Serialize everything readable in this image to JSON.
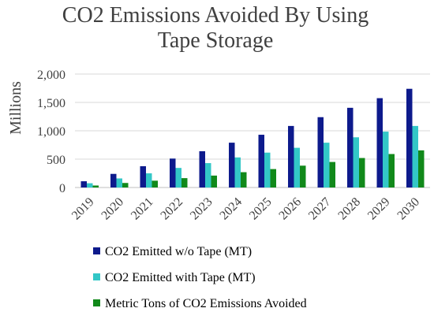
{
  "chart_data": {
    "type": "bar",
    "title_lines": [
      "CO2 Emissions Avoided By Using",
      "Tape Storage"
    ],
    "xlabel": "",
    "ylabel": "Millions",
    "ylim": [
      0,
      2000
    ],
    "yticks": [
      0,
      500,
      1000,
      1500,
      2000
    ],
    "ytick_labels": [
      "0",
      "500",
      "1,000",
      "1,500",
      "2,000"
    ],
    "grid": true,
    "legend_position": "bottom",
    "categories": [
      "2019",
      "2020",
      "2021",
      "2022",
      "2023",
      "2024",
      "2025",
      "2026",
      "2027",
      "2028",
      "2029",
      "2030"
    ],
    "series": [
      {
        "name": "CO2 Emitted w/o Tape (MT)",
        "color": "#0d1a8c",
        "values": [
          110,
          240,
          375,
          510,
          640,
          790,
          930,
          1085,
          1240,
          1405,
          1575,
          1740
        ]
      },
      {
        "name": "CO2 Emitted with Tape (MT)",
        "color": "#33c7c7",
        "values": [
          75,
          160,
          250,
          345,
          430,
          530,
          615,
          700,
          790,
          885,
          985,
          1085
        ]
      },
      {
        "name": "Metric Tons of CO2 Emissions Avoided",
        "color": "#11891a",
        "values": [
          35,
          80,
          120,
          165,
          210,
          270,
          325,
          385,
          450,
          520,
          590,
          655
        ]
      }
    ]
  }
}
